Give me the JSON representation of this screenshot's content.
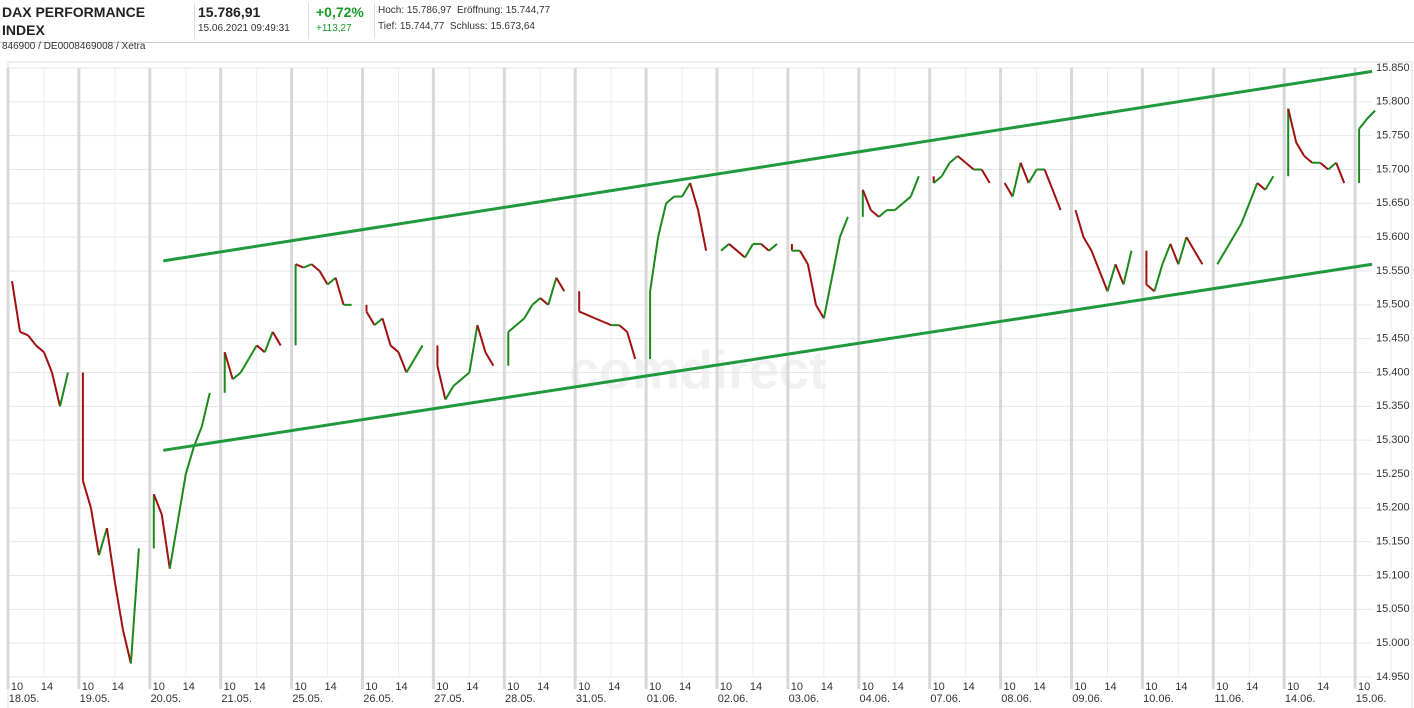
{
  "header": {
    "name": "DAX PERFORMANCE INDEX",
    "id": "846900 / DE0008469008 / Xetra",
    "price": "15.786,91",
    "time": "15.06.2021 09:49:31",
    "change_pct": "+0,72%",
    "change_abs": "+113,27",
    "high": "Hoch: 15.786,97",
    "open": "Eröffnung: 15.744,77",
    "low": "Tief: 15.744,77",
    "prev_close": "Schluss: 15.673,64"
  },
  "chart_data": {
    "type": "line",
    "watermark": "comdirect",
    "up_color": "#1a8a1a",
    "down_color": "#a01010",
    "grid": true,
    "hour_labels": [
      "10",
      "14"
    ],
    "ylim": [
      14950,
      15850
    ],
    "yticks": [
      {
        "value": 14950,
        "label": "14.950"
      },
      {
        "value": 15000,
        "label": "15.000"
      },
      {
        "value": 15050,
        "label": "15.050"
      },
      {
        "value": 15100,
        "label": "15.100"
      },
      {
        "value": 15150,
        "label": "15.150"
      },
      {
        "value": 15200,
        "label": "15.200"
      },
      {
        "value": 15250,
        "label": "15.250"
      },
      {
        "value": 15300,
        "label": "15.300"
      },
      {
        "value": 15350,
        "label": "15.350"
      },
      {
        "value": 15400,
        "label": "15.400"
      },
      {
        "value": 15450,
        "label": "15.450"
      },
      {
        "value": 15500,
        "label": "15.500"
      },
      {
        "value": 15550,
        "label": "15.550"
      },
      {
        "value": 15600,
        "label": "15.600"
      },
      {
        "value": 15650,
        "label": "15.650"
      },
      {
        "value": 15700,
        "label": "15.700"
      },
      {
        "value": 15750,
        "label": "15.750"
      },
      {
        "value": 15800,
        "label": "15.800"
      },
      {
        "value": 15850,
        "label": "15.850"
      }
    ],
    "days": [
      {
        "label": "18.05.",
        "values": [
          15535,
          15460,
          15455,
          15440,
          15430,
          15400,
          15350,
          15400
        ]
      },
      {
        "label": "19.05.",
        "values": [
          15240,
          15200,
          15130,
          15170,
          15090,
          15020,
          14970,
          15140
        ]
      },
      {
        "label": "20.05.",
        "values": [
          15220,
          15190,
          15110,
          15180,
          15250,
          15290,
          15320,
          15370
        ]
      },
      {
        "label": "21.05.",
        "values": [
          15430,
          15390,
          15400,
          15420,
          15440,
          15430,
          15460,
          15440
        ]
      },
      {
        "label": "25.05.",
        "values": [
          15560,
          15555,
          15560,
          15550,
          15530,
          15540,
          15500,
          15500
        ]
      },
      {
        "label": "26.05.",
        "values": [
          15490,
          15470,
          15480,
          15440,
          15430,
          15400,
          15420,
          15440
        ]
      },
      {
        "label": "27.05.",
        "values": [
          15410,
          15360,
          15380,
          15390,
          15400,
          15470,
          15430,
          15410
        ]
      },
      {
        "label": "28.05.",
        "values": [
          15460,
          15470,
          15480,
          15500,
          15510,
          15500,
          15540,
          15520
        ]
      },
      {
        "label": "31.05.",
        "values": [
          15490,
          15485,
          15480,
          15475,
          15470,
          15470,
          15460,
          15420
        ]
      },
      {
        "label": "01.06.",
        "values": [
          15520,
          15600,
          15650,
          15660,
          15660,
          15680,
          15640,
          15580
        ]
      },
      {
        "label": "02.06.",
        "values": [
          15580,
          15590,
          15580,
          15570,
          15590,
          15590,
          15580,
          15590
        ]
      },
      {
        "label": "03.06.",
        "values": [
          15580,
          15580,
          15560,
          15500,
          15480,
          15540,
          15600,
          15630
        ]
      },
      {
        "label": "04.06.",
        "values": [
          15670,
          15640,
          15630,
          15640,
          15640,
          15650,
          15660,
          15690
        ]
      },
      {
        "label": "07.06.",
        "values": [
          15680,
          15690,
          15710,
          15720,
          15710,
          15700,
          15700,
          15680
        ]
      },
      {
        "label": "08.06.",
        "values": [
          15680,
          15660,
          15710,
          15680,
          15700,
          15700,
          15670,
          15640
        ]
      },
      {
        "label": "09.06.",
        "values": [
          15640,
          15600,
          15580,
          15550,
          15520,
          15560,
          15530,
          15580
        ]
      },
      {
        "label": "10.06.",
        "values": [
          15530,
          15520,
          15560,
          15590,
          15560,
          15600,
          15580,
          15560
        ]
      },
      {
        "label": "11.06.",
        "values": [
          15560,
          15580,
          15600,
          15620,
          15650,
          15680,
          15670,
          15690
        ]
      },
      {
        "label": "14.06.",
        "values": [
          15790,
          15740,
          15720,
          15710,
          15710,
          15700,
          15710,
          15680
        ]
      },
      {
        "label": "15.06.",
        "values": [
          15760,
          15775,
          15787
        ]
      }
    ],
    "trendlines": [
      {
        "color": "#1e9a3c",
        "x": [
          2.19,
          19.24
        ],
        "values": [
          15565,
          15845
        ]
      },
      {
        "color": "#1e9a3c",
        "x": [
          2.19,
          19.24
        ],
        "values": [
          15285,
          15560
        ]
      }
    ]
  }
}
